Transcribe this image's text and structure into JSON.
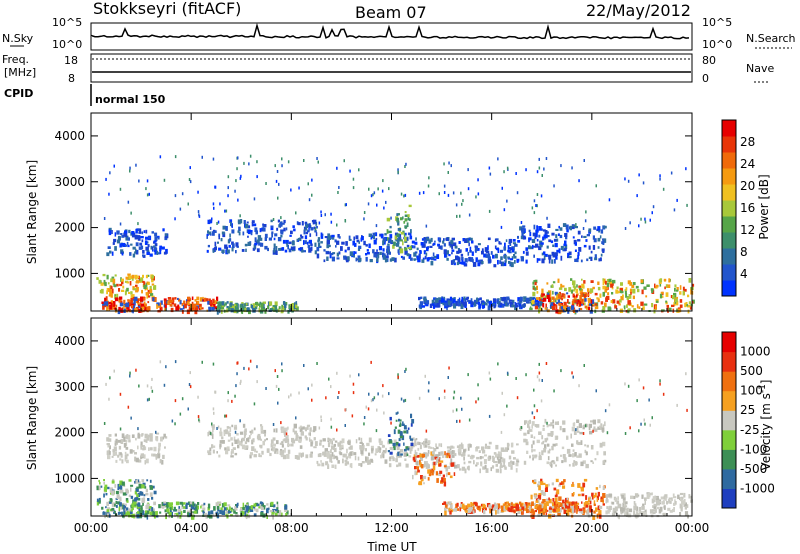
{
  "header": {
    "station": "Stokkseyri (fitACF)",
    "beam": "Beam 07",
    "date": "22/May/2012"
  },
  "top_panels": {
    "nsky_label": "N.Sky",
    "nsearch_label": "N.Search",
    "nsky_ticks": [
      "10^5",
      "10^0"
    ],
    "nsearch_ticks": [
      "10^5",
      "10^0"
    ],
    "freq_label": "Freq.",
    "freq_unit": "[MHz]",
    "freq_ticks": [
      "18",
      "8"
    ],
    "nave_label": "Nave",
    "nave_ticks": [
      "80",
      "0"
    ],
    "cpid_label": "CPID",
    "cpid_value": "normal 150"
  },
  "chart_data": [
    {
      "type": "heatmap",
      "name": "power",
      "ylabel": "Slant Range [km]",
      "xlabel": "",
      "x_ticks": [
        "00:00",
        "04:00",
        "08:00",
        "12:00",
        "16:00",
        "20:00",
        "00:00"
      ],
      "y_ticks": [
        "1000",
        "2000",
        "3000",
        "4000"
      ],
      "ylim": [
        180,
        4500
      ],
      "xlim_hours": [
        0,
        24
      ],
      "colorbar": {
        "label": "Power [dB]",
        "ticks": [
          "4",
          "8",
          "12",
          "16",
          "20",
          "24",
          "28"
        ],
        "colors": [
          "#0033ff",
          "#2255cc",
          "#2e6f9e",
          "#3d8f6b",
          "#56a548",
          "#a8c83a",
          "#f0c020",
          "#f59a10",
          "#f06a0a",
          "#e83508",
          "#e60000"
        ]
      },
      "bands": [
        {
          "t0": 0.6,
          "t1": 3.0,
          "r0": 1400,
          "r1": 2000,
          "level": "blue"
        },
        {
          "t0": 4.6,
          "t1": 9.0,
          "r0": 1500,
          "r1": 2200,
          "level": "blue"
        },
        {
          "t0": 9.0,
          "t1": 13.5,
          "r0": 1300,
          "r1": 1900,
          "level": "blue"
        },
        {
          "t0": 13.5,
          "t1": 17.0,
          "r0": 1200,
          "r1": 1800,
          "level": "blue"
        },
        {
          "t0": 17.0,
          "t1": 20.5,
          "r0": 1300,
          "r1": 2100,
          "level": "blue"
        },
        {
          "t0": 11.8,
          "t1": 12.8,
          "r0": 1500,
          "r1": 2500,
          "level": "green"
        },
        {
          "t0": 0.2,
          "t1": 2.5,
          "r0": 500,
          "r1": 1000,
          "level": "orange"
        },
        {
          "t0": 0.4,
          "t1": 5.0,
          "r0": 200,
          "r1": 500,
          "level": "red"
        },
        {
          "t0": 5.0,
          "t1": 8.2,
          "r0": 200,
          "r1": 400,
          "level": "green"
        },
        {
          "t0": 13.0,
          "t1": 18.0,
          "r0": 300,
          "r1": 500,
          "level": "blue"
        },
        {
          "t0": 17.5,
          "t1": 24.0,
          "r0": 200,
          "r1": 900,
          "level": "orange"
        },
        {
          "t0": 18.0,
          "t1": 20.0,
          "r0": 200,
          "r1": 600,
          "level": "red"
        }
      ]
    },
    {
      "type": "heatmap",
      "name": "velocity",
      "ylabel": "Slant Range [km]",
      "xlabel": "Time UT",
      "x_ticks": [
        "00:00",
        "04:00",
        "08:00",
        "12:00",
        "16:00",
        "20:00",
        "00:00"
      ],
      "y_ticks": [
        "1000",
        "2000",
        "3000",
        "4000"
      ],
      "ylim": [
        180,
        4500
      ],
      "xlim_hours": [
        0,
        24
      ],
      "colorbar": {
        "label": "Velocity [m s^-1]",
        "ticks": [
          "1000",
          "500",
          "100",
          "25",
          "-25",
          "-100",
          "-500",
          "-1000"
        ],
        "colors": [
          "#1f3fbf",
          "#2f6aa0",
          "#3d8f55",
          "#7fcf3a",
          "#c8c8c0",
          "#f5a020",
          "#ef7010",
          "#e83010",
          "#e60000"
        ]
      },
      "bands": [
        {
          "t0": 0.6,
          "t1": 3.0,
          "r0": 1400,
          "r1": 2000,
          "level": "gray"
        },
        {
          "t0": 4.6,
          "t1": 9.0,
          "r0": 1500,
          "r1": 2200,
          "level": "gray"
        },
        {
          "t0": 9.0,
          "t1": 13.5,
          "r0": 1300,
          "r1": 1900,
          "level": "gray"
        },
        {
          "t0": 13.5,
          "t1": 17.0,
          "r0": 1200,
          "r1": 1800,
          "level": "gray"
        },
        {
          "t0": 17.0,
          "t1": 20.5,
          "r0": 1300,
          "r1": 2300,
          "level": "gray"
        },
        {
          "t0": 11.8,
          "t1": 12.8,
          "r0": 1500,
          "r1": 2500,
          "level": "blue"
        },
        {
          "t0": 12.8,
          "t1": 14.5,
          "r0": 900,
          "r1": 1600,
          "level": "orange"
        },
        {
          "t0": 0.2,
          "t1": 2.5,
          "r0": 500,
          "r1": 1000,
          "level": "green"
        },
        {
          "t0": 0.4,
          "t1": 7.8,
          "r0": 200,
          "r1": 500,
          "level": "green"
        },
        {
          "t0": 14.0,
          "t1": 20.0,
          "r0": 300,
          "r1": 500,
          "level": "orange"
        },
        {
          "t0": 17.5,
          "t1": 20.5,
          "r0": 200,
          "r1": 1000,
          "level": "orange"
        },
        {
          "t0": 20.5,
          "t1": 24.0,
          "r0": 200,
          "r1": 700,
          "level": "gray"
        }
      ]
    }
  ]
}
